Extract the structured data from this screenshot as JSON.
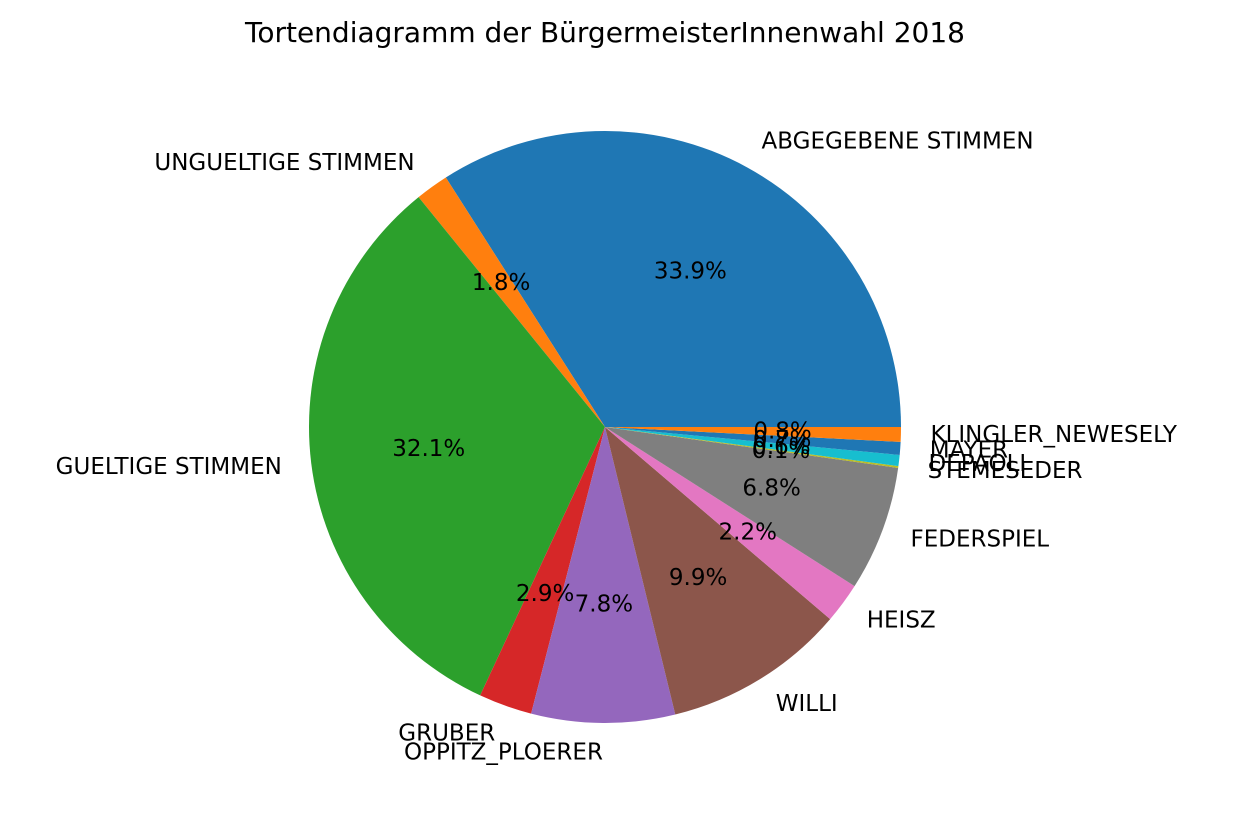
{
  "chart_data": {
    "type": "pie",
    "title": "Tortendiagramm der BürgermeisterInnenwahl 2018",
    "slices": [
      {
        "label": "ABGEGEBENE STIMMEN",
        "percent": 33.9,
        "pct_label": "33.9%",
        "color": "#1f77b4"
      },
      {
        "label": "UNGUELTIGE STIMMEN",
        "percent": 1.8,
        "pct_label": "1.8%",
        "color": "#ff7f0e"
      },
      {
        "label": "GUELTIGE STIMMEN",
        "percent": 32.1,
        "pct_label": "32.1%",
        "color": "#2ca02c"
      },
      {
        "label": "GRUBER",
        "percent": 2.9,
        "pct_label": "2.9%",
        "color": "#d62728"
      },
      {
        "label": "OPPITZ_PLOERER",
        "percent": 7.8,
        "pct_label": "7.8%",
        "color": "#9467bd"
      },
      {
        "label": "WILLI",
        "percent": 9.9,
        "pct_label": "9.9%",
        "color": "#8c564b"
      },
      {
        "label": "HEISZ",
        "percent": 2.2,
        "pct_label": "2.2%",
        "color": "#e377c2"
      },
      {
        "label": "FEDERSPIEL",
        "percent": 6.8,
        "pct_label": "6.8%",
        "color": "#7f7f7f"
      },
      {
        "label": "STEMESEDER",
        "percent": 0.1,
        "pct_label": "0.1%",
        "color": "#bcbd22"
      },
      {
        "label": "DEPAOLI",
        "percent": 0.6,
        "pct_label": "0.6%",
        "color": "#17becf"
      },
      {
        "label": "MAYER",
        "percent": 0.7,
        "pct_label": "0.7%",
        "color": "#1f77b4"
      },
      {
        "label": "KLINGLER_NEWESELY",
        "percent": 0.8,
        "pct_label": "0.8%",
        "color": "#ff7f0e"
      }
    ]
  }
}
